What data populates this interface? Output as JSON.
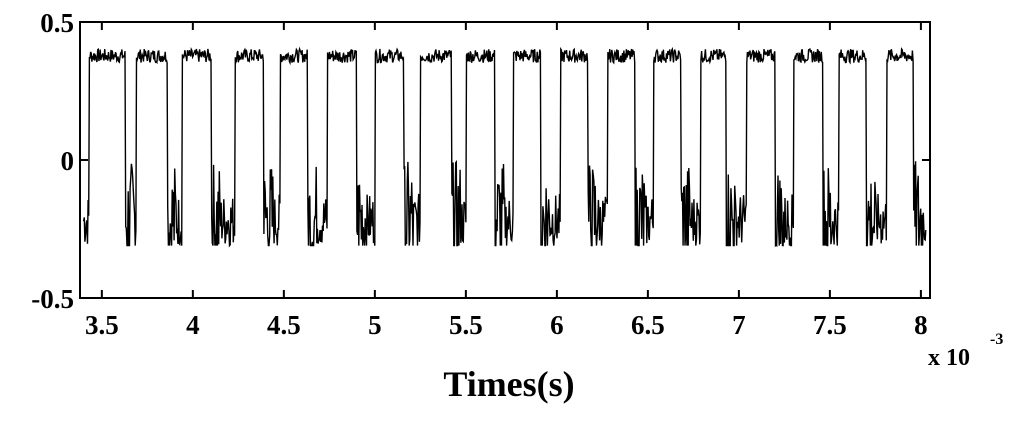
{
  "chart_data": {
    "type": "line",
    "title": "",
    "xlabel": "Times(s)",
    "ylabel": "",
    "x_multiplier_label": "x 10",
    "x_multiplier_exponent": "-3",
    "xlim": [
      3.38,
      8.05
    ],
    "ylim": [
      -0.5,
      0.5
    ],
    "x_ticks": [
      3.5,
      4,
      4.5,
      5,
      5.5,
      6,
      6.5,
      7,
      7.5,
      8
    ],
    "x_tick_labels": [
      "3.5",
      "4",
      "4.5",
      "5",
      "5.5",
      "6",
      "6.5",
      "7",
      "7.5",
      "8"
    ],
    "y_ticks": [
      0.5,
      0,
      -0.5
    ],
    "y_tick_labels": [
      "0.5",
      "0",
      "-0.5"
    ],
    "grid": false,
    "legend": "none",
    "line_color": "#000000",
    "series": [
      {
        "signal": "noisy square wave",
        "high_level": 0.38,
        "low_level": -0.22,
        "low_excursion_range": [
          -0.31,
          0.13
        ],
        "high_segments": [
          [
            3.43,
            3.63
          ],
          [
            3.69,
            3.86
          ],
          [
            3.94,
            4.1
          ],
          [
            4.23,
            4.39
          ],
          [
            4.48,
            4.63
          ],
          [
            4.74,
            4.9
          ],
          [
            5.0,
            5.16
          ],
          [
            5.25,
            5.42
          ],
          [
            5.5,
            5.66
          ],
          [
            5.76,
            5.91
          ],
          [
            6.02,
            6.17
          ],
          [
            6.28,
            6.43
          ],
          [
            6.53,
            6.68
          ],
          [
            6.79,
            6.93
          ],
          [
            7.04,
            7.2
          ],
          [
            7.3,
            7.46
          ],
          [
            7.55,
            7.7
          ],
          [
            7.81,
            7.96
          ]
        ]
      }
    ]
  }
}
